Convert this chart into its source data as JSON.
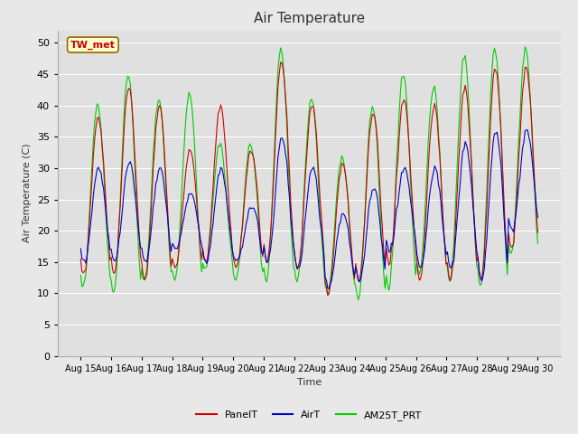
{
  "title": "Air Temperature",
  "ylabel": "Air Temperature (C)",
  "xlabel": "Time",
  "station_label": "TW_met",
  "legend_labels": [
    "PanelT",
    "AirT",
    "AM25T_PRT"
  ],
  "colors": [
    "#cc0000",
    "#0000cc",
    "#00cc00"
  ],
  "ylim": [
    0,
    52
  ],
  "yticks": [
    0,
    5,
    10,
    15,
    20,
    25,
    30,
    35,
    40,
    45,
    50
  ],
  "fig_bg_color": "#e8e8e8",
  "plot_bg": "#e0e0e0",
  "start_day": 15,
  "end_day": 30,
  "n_points": 360,
  "daily_peaks_panel": [
    38,
    43,
    40,
    33,
    40,
    33,
    47,
    40,
    31,
    39,
    41,
    40,
    43,
    46,
    46
  ],
  "daily_peaks_air": [
    30,
    31,
    30,
    26,
    30,
    24,
    35,
    30,
    23,
    27,
    30,
    30,
    34,
    36,
    36
  ],
  "daily_peaks_am25": [
    40,
    45,
    41,
    42,
    34,
    34,
    49,
    41,
    32,
    40,
    45,
    43,
    48,
    49,
    49
  ],
  "daily_mins_panel": [
    13,
    13,
    12,
    14,
    15,
    14,
    15,
    14,
    10,
    12,
    15,
    12,
    12,
    12,
    17
  ],
  "daily_mins_air": [
    15,
    15,
    15,
    17,
    15,
    15,
    15,
    14,
    11,
    12,
    17,
    14,
    14,
    12,
    20
  ],
  "daily_mins_am25": [
    11,
    10,
    12,
    12,
    14,
    12,
    12,
    12,
    10,
    9,
    11,
    13,
    12,
    11,
    16
  ]
}
